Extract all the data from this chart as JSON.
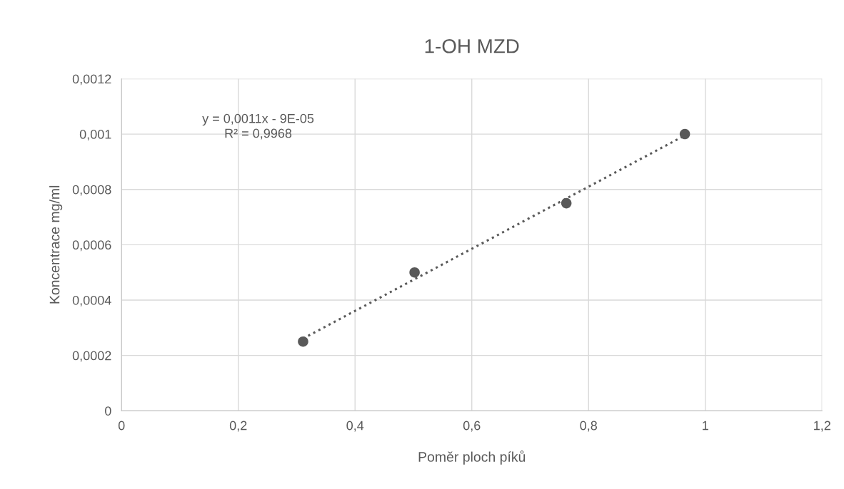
{
  "chart_data": {
    "type": "scatter",
    "title": "1-OH MZD",
    "xlabel": "Poměr ploch píků",
    "ylabel": "Koncentrace mg/ml",
    "series": [
      {
        "color": "#595959",
        "marker": "circle",
        "x": [
          0.311,
          0.502,
          0.762,
          0.965
        ],
        "values": [
          0.00025,
          0.0005,
          0.00075,
          0.001
        ]
      },
      {
        "type": "line",
        "color": "#595959",
        "marker": "none",
        "line_style": "dotted",
        "x": [
          0.311,
          0.965
        ],
        "values": [
          0.000261,
          0.000995
        ]
      }
    ],
    "xlim": [
      0,
      1.2
    ],
    "xticks": [
      0,
      {
        "value": 0.2,
        "label": "0,2"
      },
      {
        "value": 0.4,
        "label": "0,4"
      },
      {
        "value": 0.6,
        "label": "0,6"
      },
      {
        "value": 0.8,
        "label": "0,8"
      },
      1,
      {
        "value": 1.2,
        "label": "1,2"
      }
    ],
    "ylim": [
      0,
      0.0012
    ],
    "yticks": [
      0,
      {
        "value": 0.0002,
        "label": "0,0002"
      },
      {
        "value": 0.0004,
        "label": "0,0004"
      },
      {
        "value": 0.0006,
        "label": "0,0006"
      },
      {
        "value": 0.0008,
        "label": "0,0008"
      },
      {
        "value": 0.001,
        "label": "0,001"
      },
      {
        "value": 0.0012,
        "label": "0,0012"
      }
    ],
    "grid": true,
    "legend": false,
    "annotations": [
      "y = 0,0011x - 9E-05\nR² = 0,9968"
    ]
  }
}
